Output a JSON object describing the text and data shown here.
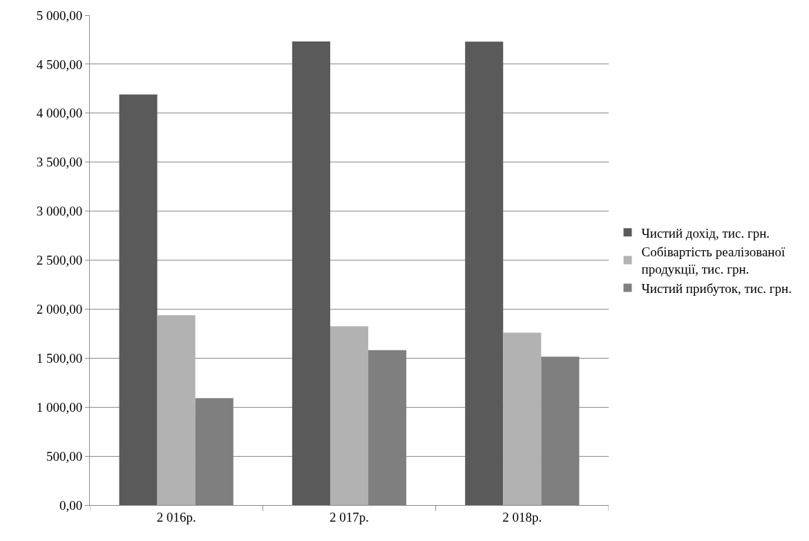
{
  "chart_data": {
    "type": "bar",
    "categories": [
      "2 016р.",
      "2 017р.",
      "2 018р."
    ],
    "series": [
      {
        "name": "Чистий дохід, тис. грн.",
        "color": "#5a5a5a",
        "values": [
          4190,
          4732,
          4730
        ]
      },
      {
        "name": "Собівартість реалізованої продукції, тис. грн.",
        "color": "#b2b2b2",
        "values": [
          1937,
          1824,
          1760
        ]
      },
      {
        "name": "Чистий прибуток, тис. грн.",
        "color": "#7f7f7f",
        "values": [
          1092,
          1581,
          1514
        ]
      }
    ],
    "ylim": [
      0,
      5000
    ],
    "yticks": [
      {
        "value": 0,
        "label": "0,00"
      },
      {
        "value": 500,
        "label": "500,00"
      },
      {
        "value": 1000,
        "label": "1 000,00"
      },
      {
        "value": 1500,
        "label": "1 500,00"
      },
      {
        "value": 2000,
        "label": "2 000,00"
      },
      {
        "value": 2500,
        "label": "2 500,00"
      },
      {
        "value": 3000,
        "label": "3 000,00"
      },
      {
        "value": 3500,
        "label": "3 500,00"
      },
      {
        "value": 4000,
        "label": "4 000,00"
      },
      {
        "value": 4500,
        "label": "4 500,00"
      },
      {
        "value": 5000,
        "label": "5 000,00"
      }
    ],
    "grid": "y",
    "legend": "right"
  }
}
